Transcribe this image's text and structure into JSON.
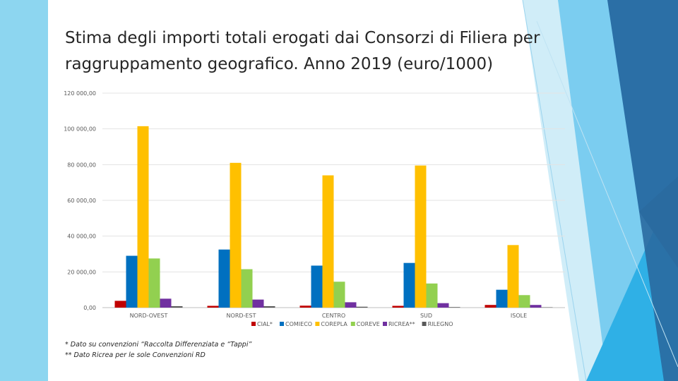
{
  "slide": {
    "title_line1": "Stima degli importi totali erogati dai Consorzi di Filiera per",
    "title_line2": "raggruppamento geografico. Anno 2019 (euro/1000)",
    "note1": "* Dato su convenzioni “Raccolta Differenziata e “Tappi”",
    "note2": "** Dato Ricrea per le sole Convenzioni RD"
  },
  "theme": {
    "accent_light": "#8dd6f0",
    "accent_mid": "#2fa4d8",
    "accent_dark": "#2b6fa6"
  },
  "chart_data": {
    "type": "bar",
    "title": "",
    "xlabel": "",
    "ylabel": "",
    "ylim": [
      0,
      120000
    ],
    "yticks": [
      0,
      20000,
      40000,
      60000,
      80000,
      100000,
      120000
    ],
    "ytick_labels": [
      "0,00",
      "20 000,00",
      "40 000,00",
      "60 000,00",
      "80 000,00",
      "100 000,00",
      "120 000,00"
    ],
    "grid": true,
    "legend_position": "bottom",
    "categories": [
      "NORD-OVEST",
      "NORD-EST",
      "CENTRO",
      "SUD",
      "ISOLE"
    ],
    "series": [
      {
        "name": "CIAL*",
        "color": "#c00000",
        "values": [
          3800,
          1000,
          1100,
          1000,
          1500
        ]
      },
      {
        "name": "COMIECO",
        "color": "#0070c0",
        "values": [
          29000,
          32500,
          23500,
          25000,
          10000
        ]
      },
      {
        "name": "COREPLA",
        "color": "#ffc000",
        "values": [
          101500,
          81000,
          74000,
          79500,
          35000
        ]
      },
      {
        "name": "COREVE",
        "color": "#92d050",
        "values": [
          27500,
          21500,
          14500,
          13500,
          7000
        ]
      },
      {
        "name": "RICREA**",
        "color": "#7030a0",
        "values": [
          5000,
          4500,
          3000,
          2500,
          1500
        ]
      },
      {
        "name": "RILEGNO",
        "color": "#595959",
        "values": [
          800,
          800,
          500,
          300,
          200
        ]
      }
    ]
  }
}
